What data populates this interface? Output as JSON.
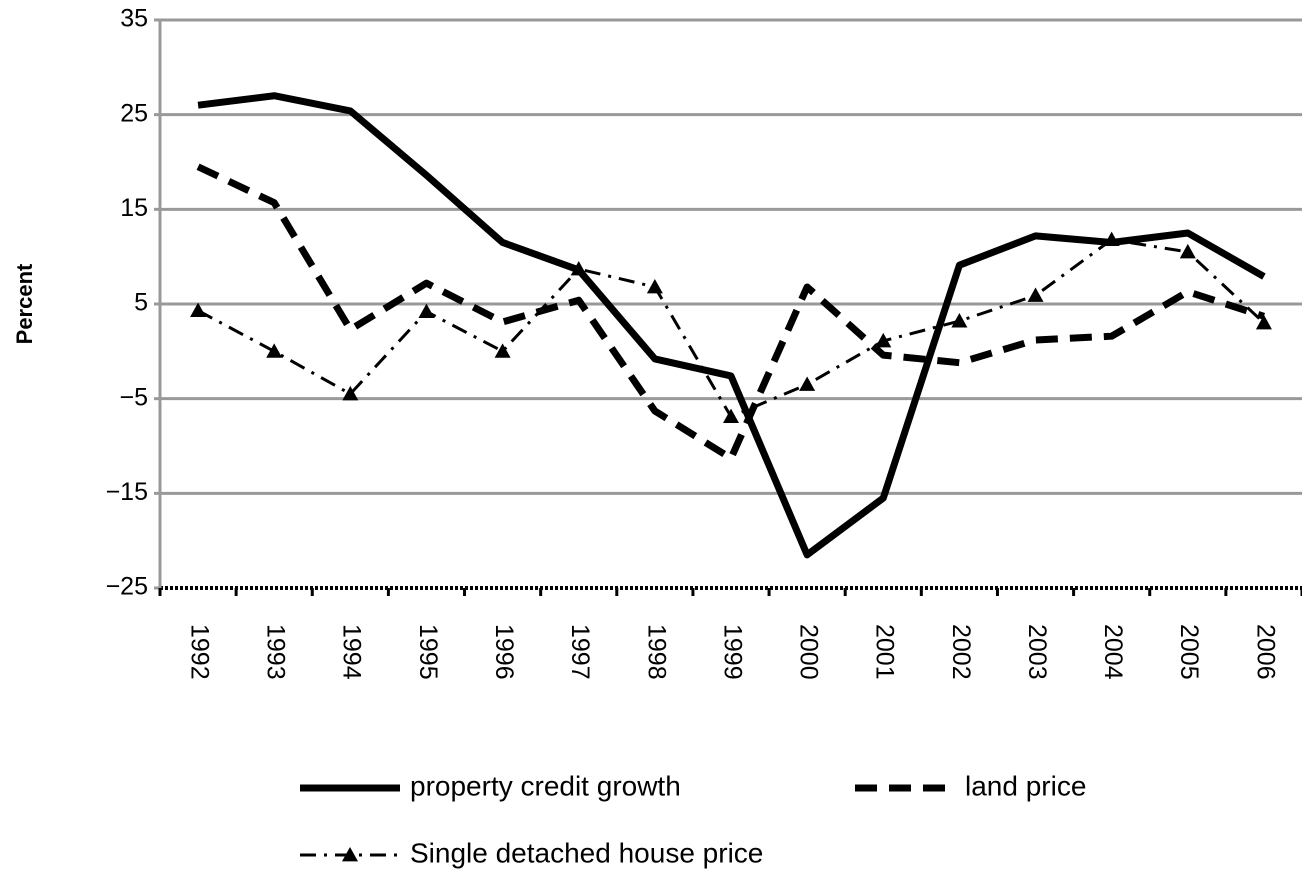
{
  "chart_data": {
    "type": "line",
    "y_label": "Percent",
    "categories": [
      "1992",
      "1993",
      "1994",
      "1995",
      "1996",
      "1997",
      "1998",
      "1999",
      "2000",
      "2001",
      "2002",
      "2003",
      "2004",
      "2005",
      "2006"
    ],
    "series": [
      {
        "name": "property credit growth",
        "color": "#000000",
        "dash": "solid",
        "marker": "none",
        "values": [
          26,
          27,
          25.4,
          18.6,
          11.5,
          8.6,
          -0.8,
          -2.6,
          -21.5,
          -15.5,
          9.1,
          12.2,
          11.5,
          12.5,
          7.9
        ]
      },
      {
        "name": "land price",
        "color": "#000000",
        "dash": "dashed",
        "marker": "none",
        "values": [
          19.5,
          15.7,
          2.3,
          7.2,
          3.1,
          5.4,
          -6.3,
          -11.3,
          6.8,
          -0.4,
          -1.2,
          1.2,
          1.6,
          6.3,
          3.7
        ]
      },
      {
        "name": "Single detached house price",
        "color": "#000000",
        "dash": "dashdot",
        "marker": "triangle",
        "values": [
          4.3,
          0,
          -4.5,
          4.2,
          0,
          8.7,
          6.8,
          -6.9,
          -3.5,
          1.1,
          3.2,
          5.9,
          11.8,
          10.5,
          3.0
        ]
      }
    ],
    "ylim": [
      -25,
      35
    ],
    "yticks": [
      {
        "value": -25,
        "label": "−25"
      },
      {
        "value": -15,
        "label": "−15"
      },
      {
        "value": -5,
        "label": "−5"
      },
      5,
      15,
      25,
      35
    ],
    "grid": true,
    "legend": "bottom"
  }
}
